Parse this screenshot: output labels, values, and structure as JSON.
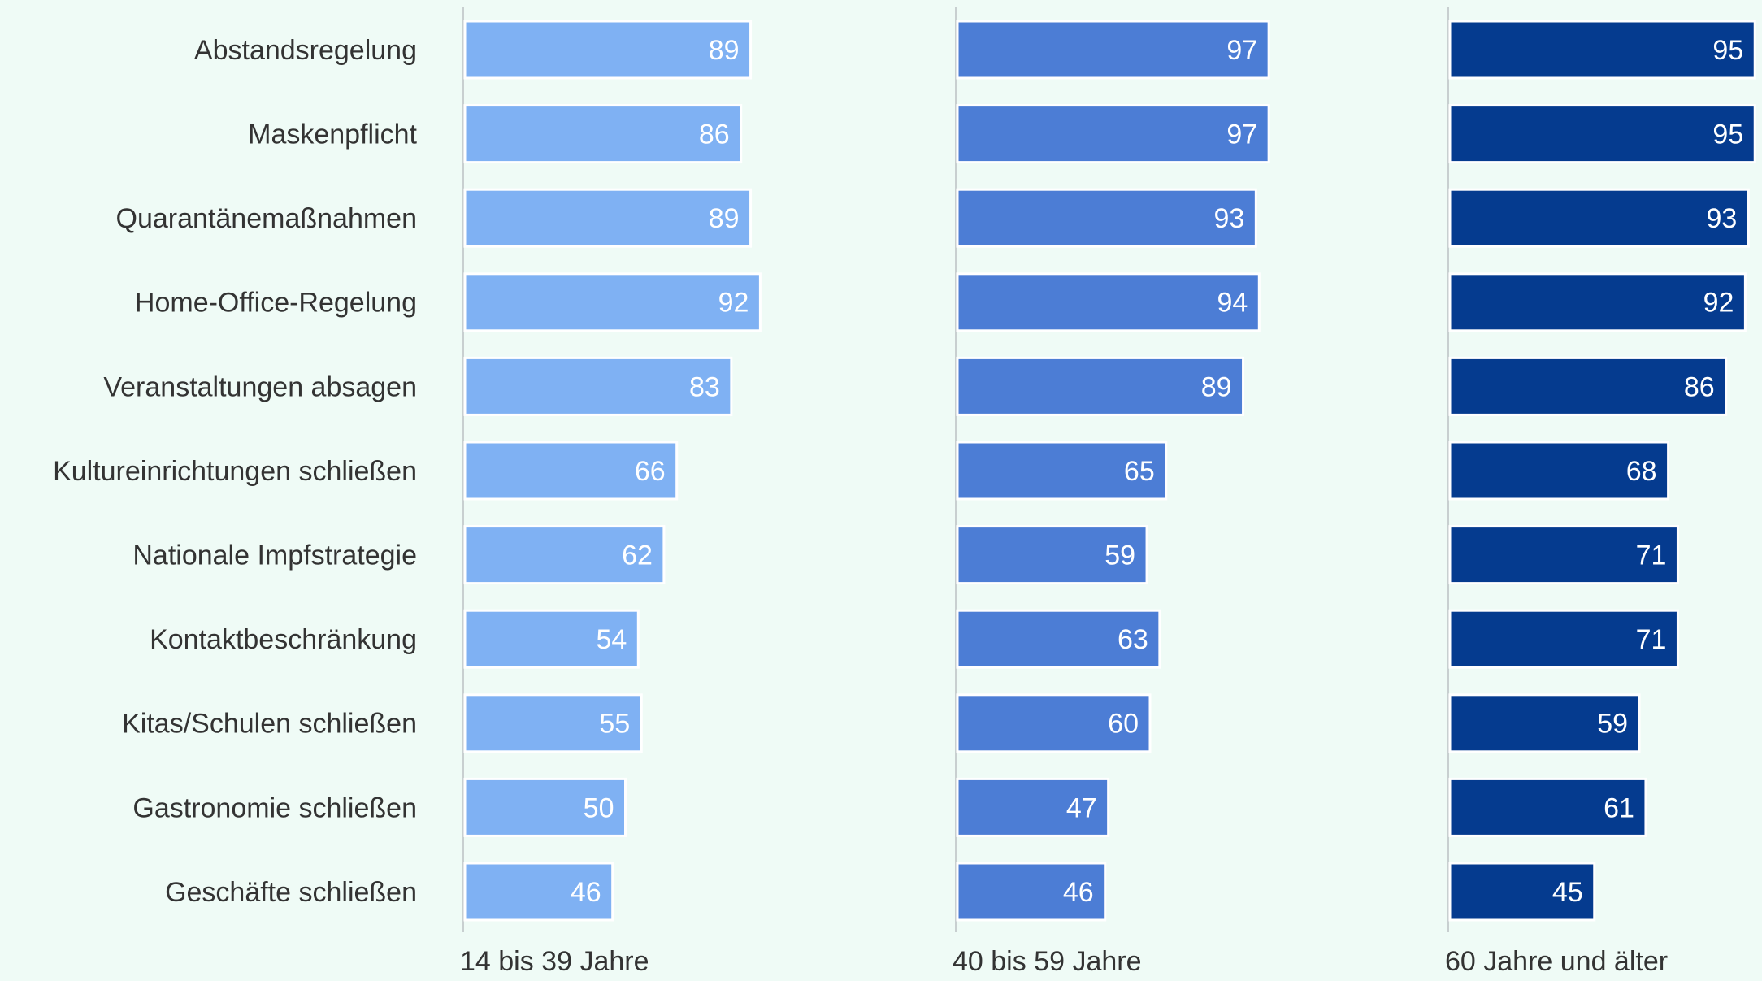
{
  "chart_data": {
    "type": "bar",
    "orientation": "horizontal",
    "layout": "small-multiples",
    "title": "",
    "xlabel": "",
    "ylabel": "",
    "categories": [
      "Abstandsregelung",
      "Maskenpflicht",
      "Quarantänemaßnahmen",
      "Home-Office-Regelung",
      "Veranstaltungen absagen",
      "Kultureinrichtungen schließen",
      "Nationale Impfstrategie",
      "Kontaktbeschränkung",
      "Kitas/Schulen schließen",
      "Gastronomie schließen",
      "Geschäfte schließen"
    ],
    "series": [
      {
        "name": "14 bis 39 Jahre",
        "color": "#7fb1f3",
        "values": [
          89,
          86,
          89,
          92,
          83,
          66,
          62,
          54,
          55,
          50,
          46
        ]
      },
      {
        "name": "40 bis 59 Jahre",
        "color": "#4c7dd5",
        "values": [
          97,
          97,
          93,
          94,
          89,
          65,
          59,
          63,
          60,
          47,
          46
        ]
      },
      {
        "name": "60 Jahre und älter",
        "color": "#053b8f",
        "values": [
          95,
          95,
          93,
          92,
          86,
          68,
          71,
          71,
          59,
          61,
          45
        ]
      }
    ],
    "xlim": [
      0,
      100
    ],
    "grid": false,
    "data_labels": true,
    "label_color": "#ffffff",
    "axis_line_color": "#c8cfd0",
    "text_color": "#333333"
  }
}
